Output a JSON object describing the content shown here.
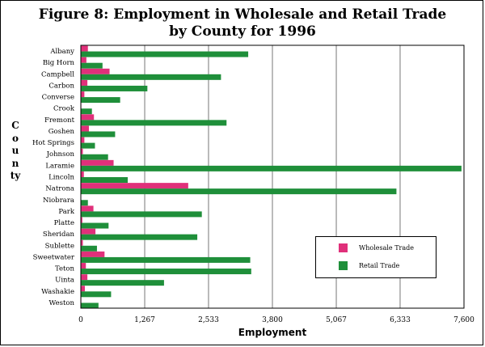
{
  "chart_data": {
    "type": "bar",
    "orientation": "horizontal",
    "title": "Figure 8:  Employment in Wholesale and Retail Trade by County for 1996",
    "title_lines": [
      "Figure 8:  Employment in Wholesale and Retail Trade",
      "by County for 1996"
    ],
    "xlabel": "Employment",
    "ylabel": "County",
    "xlim": [
      0,
      7600
    ],
    "xticks": [
      "0",
      "1,267",
      "2,533",
      "3,800",
      "5,067",
      "6,333",
      "7,600"
    ],
    "xtick_values": [
      0,
      1267,
      2533,
      3800,
      5067,
      6333,
      7600
    ],
    "grid": true,
    "legend_position": "bottom-right",
    "categories": [
      "Albany",
      "Big Horn",
      "Campbell",
      "Carbon",
      "Converse",
      "Crook",
      "Fremont",
      "Goshen",
      "Hot Springs",
      "Johnson",
      "Laramie",
      "Lincoln",
      "Natrona",
      "Niobrara",
      "Park",
      "Platte",
      "Sheridan",
      "Sublette",
      "Sweetwater",
      "Teton",
      "Uinta",
      "Washakie",
      "Weston"
    ],
    "series": [
      {
        "name": "Wholesale Trade",
        "color": "#e0307a",
        "values": [
          140,
          110,
          570,
          130,
          70,
          10,
          260,
          160,
          70,
          40,
          650,
          60,
          2130,
          0,
          250,
          30,
          290,
          40,
          470,
          100,
          130,
          80,
          10
        ]
      },
      {
        "name": "Retail Trade",
        "color": "#1f8f3a",
        "values": [
          3320,
          430,
          2780,
          1320,
          780,
          220,
          2890,
          680,
          280,
          540,
          7550,
          930,
          6260,
          140,
          2400,
          550,
          2310,
          320,
          3360,
          3380,
          1650,
          600,
          350
        ]
      }
    ]
  }
}
